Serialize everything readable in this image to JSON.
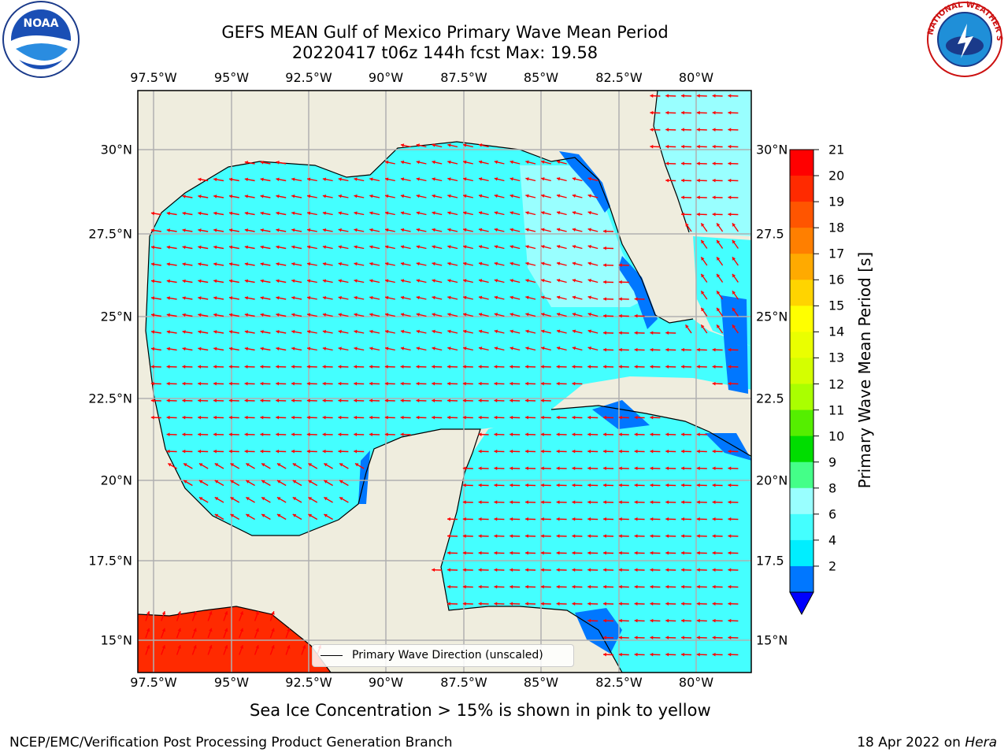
{
  "title_line1": "GEFS MEAN Gulf of Mexico Primary Wave Mean Period",
  "title_line2": "20220417 t06z 144h fcst   Max: 19.58",
  "lon_labels": [
    "97.5°W",
    "95°W",
    "92.5°W",
    "90°W",
    "87.5°W",
    "85°W",
    "82.5°W",
    "80°W"
  ],
  "lat_labels": [
    "30°N",
    "27.5°N",
    "25°N",
    "22.5°N",
    "20°N",
    "17.5°N",
    "15°N"
  ],
  "lat_labels_right": [
    "30°N",
    "27.5",
    "25°N",
    "22.5",
    "20°N",
    "17.5",
    "15°N"
  ],
  "colorbar": {
    "label": "Primary Wave Mean Period [s]",
    "ticks": [
      "21",
      "20",
      "19",
      "18",
      "17",
      "16",
      "15",
      "14",
      "13",
      "12",
      "11",
      "10",
      "9",
      "8",
      "6",
      "4",
      "2"
    ],
    "colors": [
      "#ff0000",
      "#ff2a00",
      "#ff5500",
      "#ff7f00",
      "#ffaa00",
      "#ffd400",
      "#ffff00",
      "#eaff00",
      "#d4ff00",
      "#aaff00",
      "#55ee00",
      "#00dd00",
      "#44ff88",
      "#99ffff",
      "#44ffff",
      "#00eeff",
      "#0077ff"
    ],
    "under_color": "#0000ff"
  },
  "colors": {
    "land": "#efedde",
    "sea_light": "#44ffff",
    "sea_pale": "#99ffff",
    "sea_mid": "#00eeff",
    "sea_dark": "#0077ff",
    "hot": "#ff2a00",
    "arrow": "#ff0000",
    "grid": "#b0b0b0"
  },
  "legend_label": "Primary Wave Direction (unscaled)",
  "footer_note": "Sea Ice Concentration > 15% is shown in pink to yellow",
  "credit_left": "NCEP/EMC/Verification Post Processing Product Generation Branch",
  "credit_right_prefix": "18 Apr 2022 on ",
  "credit_right_host": "Hera",
  "logos": {
    "left": "NOAA",
    "right": "NATIONAL WEATHER SERVICE"
  }
}
